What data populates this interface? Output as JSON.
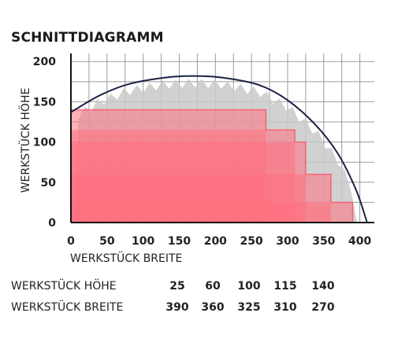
{
  "chart_data": {
    "type": "area",
    "title": "SCHNITTDIAGRAMM",
    "xlabel": "WERKSTÜCK BREITE",
    "ylabel": "WERKSTÜCK HÖHE",
    "xlim": [
      0,
      420
    ],
    "ylim": [
      0,
      210
    ],
    "xticks": [
      "0",
      "50",
      "100",
      "150",
      "200",
      "250",
      "300",
      "350",
      "400"
    ],
    "yticks": [
      "0",
      "50",
      "100",
      "150",
      "200"
    ],
    "grid": true,
    "cut_area_steps": [
      {
        "width": 270,
        "height": 140
      },
      {
        "width": 310,
        "height": 115
      },
      {
        "width": 325,
        "height": 100
      },
      {
        "width": 360,
        "height": 60
      },
      {
        "width": 390,
        "height": 25
      }
    ],
    "blade_curve": [
      {
        "x": 0,
        "y": 137
      },
      {
        "x": 40,
        "y": 158
      },
      {
        "x": 80,
        "y": 172
      },
      {
        "x": 130,
        "y": 180
      },
      {
        "x": 170,
        "y": 182
      },
      {
        "x": 210,
        "y": 180
      },
      {
        "x": 260,
        "y": 171
      },
      {
        "x": 300,
        "y": 152
      },
      {
        "x": 340,
        "y": 120
      },
      {
        "x": 370,
        "y": 85
      },
      {
        "x": 395,
        "y": 40
      },
      {
        "x": 410,
        "y": 0
      }
    ],
    "colors": {
      "cut_area": "#ff6f80",
      "blade": "#c9c9c9",
      "curve": "#1a2244",
      "grid": "#9a9a9a"
    }
  },
  "table": {
    "rows": [
      {
        "label": "WERKSTÜCK HÖHE",
        "values": [
          "25",
          "60",
          "100",
          "115",
          "140"
        ]
      },
      {
        "label": "WERKSTÜCK BREITE",
        "values": [
          "390",
          "360",
          "325",
          "310",
          "270"
        ]
      }
    ]
  }
}
